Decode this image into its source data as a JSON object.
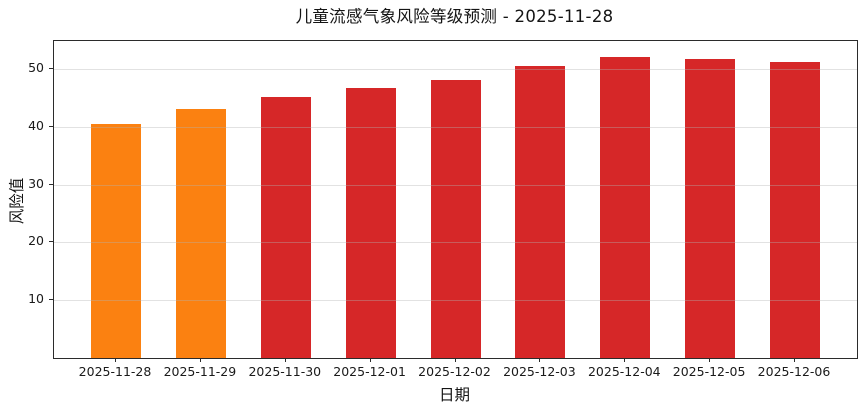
{
  "chart_data": {
    "type": "bar",
    "title": "儿童流感气象风险等级预测 - 2025-11-28",
    "xlabel": "日期",
    "ylabel": "风险值",
    "categories": [
      "2025-11-28",
      "2025-11-29",
      "2025-11-30",
      "2025-12-01",
      "2025-12-02",
      "2025-12-03",
      "2025-12-04",
      "2025-12-05",
      "2025-12-06"
    ],
    "values": [
      40.5,
      43.0,
      45.2,
      46.7,
      48.0,
      50.5,
      52.0,
      51.7,
      51.2
    ],
    "bar_colors": [
      "#fb8111",
      "#fb8111",
      "#d62728",
      "#d62728",
      "#d62728",
      "#d62728",
      "#d62728",
      "#d62728",
      "#d62728"
    ],
    "ylim": [
      0,
      54.8
    ],
    "yticks": [
      10,
      20,
      30,
      40,
      50
    ],
    "grid": "horizontal",
    "legend_position": "none"
  },
  "colors": {
    "orange_bar": "#fb8111",
    "red_bar": "#d62728",
    "gridline": "#e3e3e3",
    "spine": "#2b2b2b",
    "text": "#141414"
  }
}
